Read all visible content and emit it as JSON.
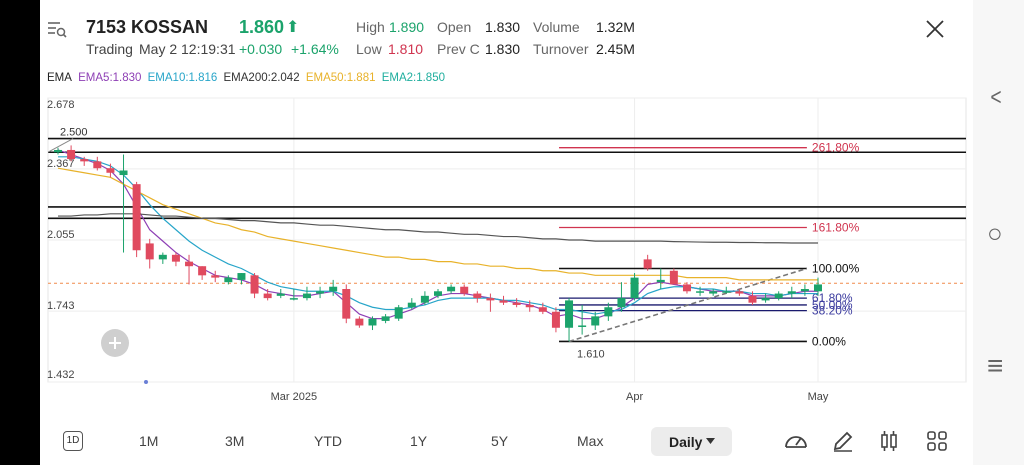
{
  "quote": {
    "code": "7153",
    "name": "KOSSAN",
    "price": "1.860",
    "arrow": "⬆",
    "status": "Trading",
    "datetime": "May 2 12:19:31",
    "change": "+0.030",
    "change_pct": "+1.64%",
    "high_label": "High",
    "high": "1.890",
    "low_label": "Low",
    "low": "1.810",
    "open_label": "Open",
    "open": "1.830",
    "prevc_label": "Prev C",
    "prevc": "1.830",
    "volume_label": "Volume",
    "volume": "1.32M",
    "turnover_label": "Turnover",
    "turnover": "2.45M"
  },
  "ema_legend": [
    {
      "text": "EMA",
      "color": "#222222"
    },
    {
      "text": "EMA5:1.830",
      "color": "#8e3fb5"
    },
    {
      "text": "EMA10:1.816",
      "color": "#27a5c9"
    },
    {
      "text": "EMA200:2.042",
      "color": "#333333"
    },
    {
      "text": "EMA50:1.881",
      "color": "#e8b22a"
    },
    {
      "text": "EMA2:1.850",
      "color": "#1fae9e"
    }
  ],
  "colors": {
    "up": "#1ba36b",
    "down": "#e04a5f",
    "fib": "#d0344f"
  },
  "chart_data": {
    "type": "candlestick",
    "y_ticks": [
      "2.678",
      "2.367",
      "2.055",
      "1.743",
      "1.432"
    ],
    "ylim": [
      1.432,
      2.678
    ],
    "x_ticks": [
      "Mar 2025",
      "Apr",
      "May"
    ],
    "horizontal_lines": [
      2.5,
      2.44,
      2.2,
      2.15
    ],
    "resistance_label": "2.500",
    "low_label": "1.610",
    "dashed_level": 1.865,
    "fib_levels": [
      {
        "label": "261.80%",
        "value": 2.46
      },
      {
        "label": "161.80%",
        "value": 2.11
      },
      {
        "label": "100.00%",
        "value": 1.93
      },
      {
        "label": "61.80%",
        "value": 1.8
      },
      {
        "label": "50.00%",
        "value": 1.77
      },
      {
        "label": "38.20%",
        "value": 1.745
      },
      {
        "label": "0.00%",
        "value": 1.61
      }
    ],
    "candles": [
      [
        2.44,
        2.46,
        2.43,
        2.45
      ],
      [
        2.45,
        2.47,
        2.4,
        2.41
      ],
      [
        2.41,
        2.42,
        2.38,
        2.4
      ],
      [
        2.4,
        2.42,
        2.36,
        2.37
      ],
      [
        2.37,
        2.39,
        2.33,
        2.35
      ],
      [
        2.34,
        2.43,
        2.0,
        2.36
      ],
      [
        2.3,
        2.31,
        1.98,
        2.01
      ],
      [
        2.04,
        2.06,
        1.93,
        1.97
      ],
      [
        1.97,
        2.0,
        1.95,
        1.99
      ],
      [
        1.99,
        2.0,
        1.94,
        1.96
      ],
      [
        1.96,
        1.99,
        1.86,
        1.94
      ],
      [
        1.94,
        1.94,
        1.88,
        1.9
      ],
      [
        1.9,
        1.92,
        1.87,
        1.89
      ],
      [
        1.87,
        1.9,
        1.86,
        1.89
      ],
      [
        1.88,
        1.91,
        1.86,
        1.91
      ],
      [
        1.9,
        1.91,
        1.8,
        1.82
      ],
      [
        1.82,
        1.84,
        1.79,
        1.8
      ],
      [
        1.81,
        1.84,
        1.8,
        1.82
      ],
      [
        1.8,
        1.84,
        1.79,
        1.8
      ],
      [
        1.8,
        1.85,
        1.79,
        1.82
      ],
      [
        1.82,
        1.85,
        1.8,
        1.83
      ],
      [
        1.83,
        1.88,
        1.81,
        1.85
      ],
      [
        1.84,
        1.86,
        1.69,
        1.71
      ],
      [
        1.71,
        1.72,
        1.67,
        1.68
      ],
      [
        1.68,
        1.72,
        1.66,
        1.71
      ],
      [
        1.7,
        1.73,
        1.69,
        1.72
      ],
      [
        1.71,
        1.77,
        1.7,
        1.76
      ],
      [
        1.76,
        1.8,
        1.75,
        1.78
      ],
      [
        1.78,
        1.83,
        1.77,
        1.81
      ],
      [
        1.81,
        1.84,
        1.8,
        1.83
      ],
      [
        1.83,
        1.86,
        1.82,
        1.85
      ],
      [
        1.85,
        1.86,
        1.81,
        1.82
      ],
      [
        1.82,
        1.83,
        1.78,
        1.8
      ],
      [
        1.8,
        1.82,
        1.74,
        1.79
      ],
      [
        1.79,
        1.81,
        1.77,
        1.78
      ],
      [
        1.78,
        1.8,
        1.76,
        1.77
      ],
      [
        1.77,
        1.79,
        1.74,
        1.76
      ],
      [
        1.76,
        1.78,
        1.73,
        1.74
      ],
      [
        1.74,
        1.76,
        1.65,
        1.67
      ],
      [
        1.67,
        1.8,
        1.61,
        1.79
      ],
      [
        1.68,
        1.77,
        1.64,
        1.68
      ],
      [
        1.68,
        1.74,
        1.66,
        1.72
      ],
      [
        1.72,
        1.78,
        1.7,
        1.76
      ],
      [
        1.76,
        1.87,
        1.74,
        1.8
      ],
      [
        1.8,
        1.91,
        1.79,
        1.89
      ],
      [
        1.97,
        1.99,
        1.92,
        1.93
      ],
      [
        1.87,
        1.93,
        1.84,
        1.88
      ],
      [
        1.92,
        1.93,
        1.86,
        1.86
      ],
      [
        1.86,
        1.87,
        1.82,
        1.83
      ],
      [
        1.83,
        1.85,
        1.81,
        1.83
      ],
      [
        1.82,
        1.84,
        1.81,
        1.83
      ],
      [
        1.83,
        1.85,
        1.82,
        1.83
      ],
      [
        1.83,
        1.84,
        1.81,
        1.82
      ],
      [
        1.81,
        1.83,
        1.77,
        1.78
      ],
      [
        1.79,
        1.82,
        1.78,
        1.8
      ],
      [
        1.8,
        1.83,
        1.79,
        1.82
      ],
      [
        1.82,
        1.85,
        1.8,
        1.83
      ],
      [
        1.83,
        1.86,
        1.81,
        1.84
      ],
      [
        1.83,
        1.89,
        1.81,
        1.86
      ]
    ],
    "ema_series": [
      {
        "name": "EMA5",
        "color": "#8e3fb5",
        "points": [
          2.45,
          2.43,
          2.41,
          2.39,
          2.36,
          2.3,
          2.2,
          2.1,
          2.05,
          2.0,
          1.96,
          1.93,
          1.9,
          1.89,
          1.88,
          1.86,
          1.83,
          1.82,
          1.81,
          1.81,
          1.82,
          1.83,
          1.78,
          1.73,
          1.71,
          1.71,
          1.73,
          1.75,
          1.78,
          1.81,
          1.82,
          1.82,
          1.81,
          1.8,
          1.79,
          1.78,
          1.77,
          1.75,
          1.72,
          1.73,
          1.71,
          1.71,
          1.73,
          1.76,
          1.8,
          1.86,
          1.87,
          1.86,
          1.85,
          1.84,
          1.83,
          1.83,
          1.83,
          1.81,
          1.81,
          1.81,
          1.82,
          1.83,
          1.83
        ]
      },
      {
        "name": "EMA10",
        "color": "#27a5c9",
        "points": [
          2.42,
          2.42,
          2.41,
          2.4,
          2.38,
          2.34,
          2.28,
          2.21,
          2.15,
          2.1,
          2.05,
          2.01,
          1.98,
          1.95,
          1.93,
          1.9,
          1.87,
          1.85,
          1.84,
          1.83,
          1.83,
          1.83,
          1.81,
          1.78,
          1.76,
          1.75,
          1.75,
          1.76,
          1.77,
          1.79,
          1.8,
          1.8,
          1.8,
          1.8,
          1.79,
          1.79,
          1.78,
          1.77,
          1.75,
          1.75,
          1.74,
          1.73,
          1.74,
          1.75,
          1.78,
          1.82,
          1.84,
          1.85,
          1.85,
          1.84,
          1.84,
          1.83,
          1.83,
          1.82,
          1.82,
          1.81,
          1.82,
          1.82,
          1.82
        ]
      },
      {
        "name": "EMA50",
        "color": "#e8b22a",
        "points": [
          2.37,
          2.36,
          2.35,
          2.34,
          2.33,
          2.3,
          2.27,
          2.24,
          2.21,
          2.19,
          2.17,
          2.15,
          2.13,
          2.12,
          2.1,
          2.09,
          2.07,
          2.06,
          2.05,
          2.04,
          2.03,
          2.02,
          2.01,
          2.0,
          1.99,
          1.98,
          1.98,
          1.97,
          1.97,
          1.96,
          1.96,
          1.95,
          1.95,
          1.94,
          1.94,
          1.93,
          1.93,
          1.92,
          1.92,
          1.91,
          1.91,
          1.9,
          1.9,
          1.9,
          1.9,
          1.9,
          1.9,
          1.9,
          1.89,
          1.89,
          1.89,
          1.89,
          1.88,
          1.88,
          1.88,
          1.88,
          1.88,
          1.88,
          1.88
        ]
      },
      {
        "name": "EMA200",
        "color": "#555555",
        "points": [
          2.16,
          2.16,
          2.165,
          2.165,
          2.17,
          2.17,
          2.17,
          2.165,
          2.16,
          2.16,
          2.155,
          2.15,
          2.15,
          2.145,
          2.14,
          2.14,
          2.135,
          2.13,
          2.13,
          2.125,
          2.12,
          2.12,
          2.115,
          2.11,
          2.105,
          2.1,
          2.1,
          2.095,
          2.09,
          2.09,
          2.085,
          2.08,
          2.08,
          2.075,
          2.07,
          2.07,
          2.065,
          2.06,
          2.06,
          2.055,
          2.055,
          2.05,
          2.05,
          2.05,
          2.05,
          2.05,
          2.05,
          2.048,
          2.047,
          2.046,
          2.045,
          2.045,
          2.044,
          2.044,
          2.043,
          2.043,
          2.042,
          2.042,
          2.042
        ]
      }
    ]
  },
  "timeframes": [
    "1D",
    "1M",
    "3M",
    "YTD",
    "1Y",
    "5Y",
    "Max"
  ],
  "period_selector": "Daily",
  "nav": {
    "back": "<",
    "home": "○",
    "menu": "≡"
  }
}
